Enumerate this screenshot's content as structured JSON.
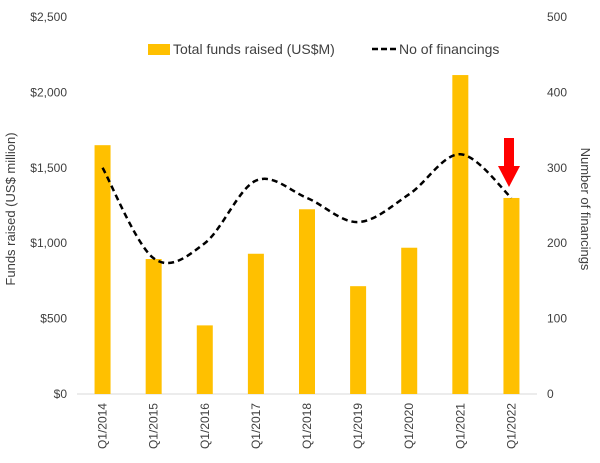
{
  "chart_data": {
    "type": "bar",
    "categories": [
      "Q1/2014",
      "Q1/2015",
      "Q1/2016",
      "Q1/2017",
      "Q1/2018",
      "Q1/2019",
      "Q1/2020",
      "Q1/2021",
      "Q1/2022"
    ],
    "series": [
      {
        "name": "Total funds raised (US$M)",
        "type": "bar",
        "axis": "left",
        "color": "#FFC000",
        "values": [
          1650,
          895,
          455,
          930,
          1225,
          715,
          970,
          2115,
          1300
        ]
      },
      {
        "name": "No of financings",
        "type": "line",
        "style": "dashed",
        "smooth": true,
        "axis": "right",
        "color": "#000000",
        "values": [
          300,
          180,
          200,
          283,
          260,
          228,
          265,
          318,
          260
        ]
      }
    ],
    "y_left": {
      "label": "Funds raised (US$ million)",
      "ylim": [
        0,
        2500
      ],
      "ticks": [
        0,
        500,
        1000,
        1500,
        2000,
        2500
      ],
      "tick_labels": [
        "$0",
        "$500",
        "$1,000",
        "$1,500",
        "$2,000",
        "$2,500"
      ]
    },
    "y_right": {
      "label": "Number of financings",
      "ylim": [
        0,
        500
      ],
      "ticks": [
        0,
        100,
        200,
        300,
        400,
        500
      ],
      "tick_labels": [
        "0",
        "100",
        "200",
        "300",
        "400",
        "500"
      ]
    },
    "grid": false,
    "legend": "top-center",
    "annotations": [
      {
        "type": "arrow",
        "direction": "down",
        "color": "#FF0000",
        "category": "Q1/2022"
      }
    ]
  }
}
